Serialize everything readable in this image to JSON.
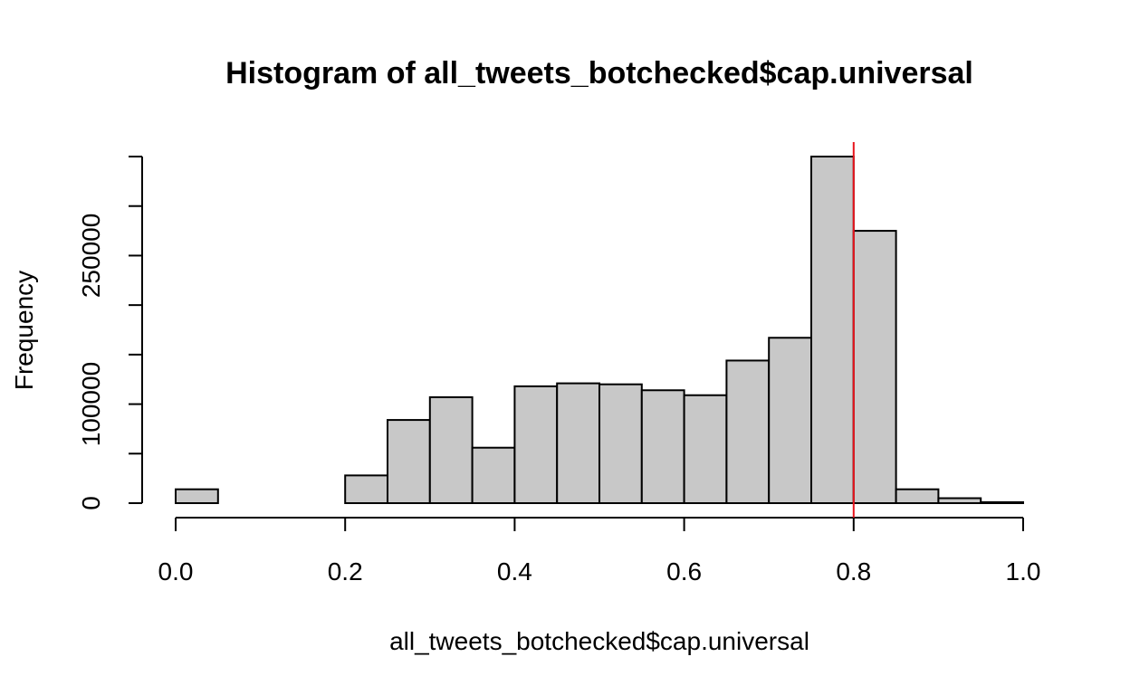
{
  "chart_data": {
    "type": "bar",
    "title": "Histogram of all_tweets_botchecked$cap.universal",
    "xlabel": "all_tweets_botchecked$cap.universal",
    "ylabel": "Frequency",
    "bin_edges": [
      0.0,
      0.05,
      0.1,
      0.15,
      0.2,
      0.25,
      0.3,
      0.35,
      0.4,
      0.45,
      0.5,
      0.55,
      0.6,
      0.65,
      0.7,
      0.75,
      0.8,
      0.85,
      0.9,
      0.95,
      1.0
    ],
    "values": [
      14000,
      0,
      0,
      0,
      28000,
      84000,
      107000,
      56000,
      118000,
      121000,
      120000,
      114000,
      109000,
      144000,
      167000,
      350000,
      275000,
      14000,
      5000,
      1000
    ],
    "xlim": [
      0.0,
      1.0
    ],
    "ylim": [
      0,
      350000
    ],
    "x_ticks": [
      0.0,
      0.2,
      0.4,
      0.6,
      0.8,
      1.0
    ],
    "x_tick_labels": [
      "0.0",
      "0.2",
      "0.4",
      "0.6",
      "0.8",
      "1.0"
    ],
    "y_ticks": [
      0,
      50000,
      100000,
      150000,
      200000,
      250000,
      300000,
      350000
    ],
    "y_tick_labels": [
      "0",
      "",
      "100000",
      "",
      "",
      "250000",
      "",
      ""
    ],
    "reference_line": {
      "x": 0.8,
      "color": "#e8141c"
    },
    "bar_color": "#c8c8c8",
    "grid": false,
    "legend": "none"
  }
}
